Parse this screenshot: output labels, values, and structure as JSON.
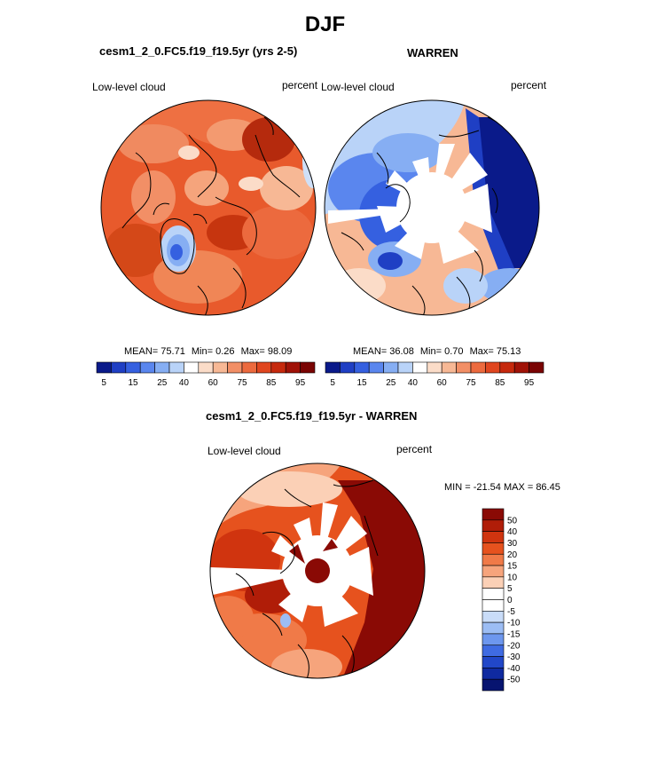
{
  "title": "DJF",
  "panels": {
    "left": {
      "title": "cesm1_2_0.FC5.f19_f19.5yr (yrs 2-5)",
      "variable_label": "Low-level cloud",
      "units_label": "percent",
      "stats": {
        "mean_label": "MEAN=",
        "mean": "75.71",
        "min_label": "Min=",
        "min": "0.26",
        "max_label": "Max=",
        "max": "98.09"
      }
    },
    "right": {
      "title": "WARREN",
      "variable_label": "Low-level cloud",
      "units_label": "percent",
      "stats": {
        "mean_label": "MEAN=",
        "mean": "36.08",
        "min_label": "Min=",
        "min": "0.70",
        "max_label": "Max=",
        "max": "75.13"
      }
    },
    "diff": {
      "title": "cesm1_2_0.FC5.f19_f19.5yr - WARREN",
      "variable_label": "Low-level cloud",
      "units_label": "percent",
      "minmax_text": "MIN = -21.54 MAX =  86.45"
    }
  },
  "colorbar_horizontal": {
    "colors": [
      "#0a1a8a",
      "#1f3fc4",
      "#3560e0",
      "#5a86ee",
      "#86aef3",
      "#b9d3f8",
      "#ffffff",
      "#fbdcc8",
      "#f7b895",
      "#f28f66",
      "#ec6a3e",
      "#e0461f",
      "#c6290d",
      "#a01207",
      "#7a0403"
    ],
    "labels": [
      "5",
      "15",
      "25",
      "40",
      "60",
      "75",
      "85",
      "95"
    ]
  },
  "colorbar_vertical": {
    "colors_top_to_bottom": [
      "#8a0a05",
      "#b01d08",
      "#d0340f",
      "#e6521e",
      "#f07a48",
      "#f6a47c",
      "#fbd0b6",
      "#ffffff",
      "#ffffff",
      "#c9dcf8",
      "#9cbdf4",
      "#6d97ee",
      "#3f6be2",
      "#2147c8",
      "#0f2aa0",
      "#071470"
    ],
    "labels": [
      "50",
      "40",
      "30",
      "20",
      "15",
      "10",
      "5",
      "0",
      "-5",
      "-10",
      "-15",
      "-20",
      "-30",
      "-40",
      "-50"
    ]
  }
}
